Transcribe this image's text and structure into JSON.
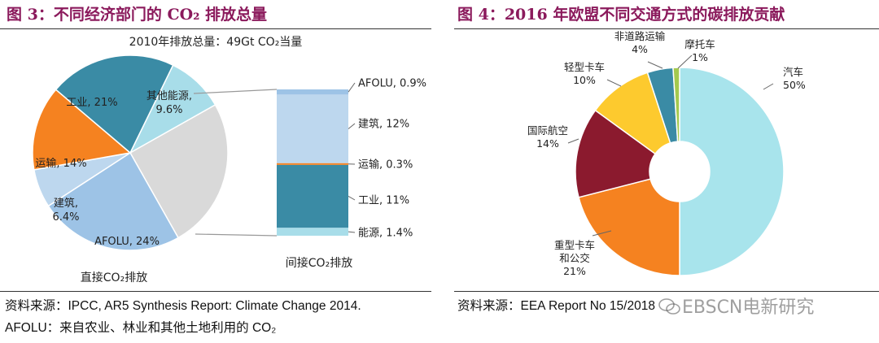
{
  "left": {
    "title": "图 3：不同经济部门的 CO₂ 排放总量",
    "subtitle": "2010年排放总量：49Gt CO₂当量",
    "source_line1": "资料来源：IPCC, AR5 Synthesis Report: Climate Change 2014.",
    "source_line2": "AFOLU：来自农业、林业和其他土地利用的 CO₂",
    "pie_caption": "直接CO₂排放",
    "bar_caption": "间接CO₂排放"
  },
  "right": {
    "title": "图 4：2016 年欧盟不同交通方式的碳排放贡献",
    "source": "资料来源：EEA Report No 15/2018"
  },
  "watermark": "EBSCN电新研究",
  "chart_data": [
    {
      "type": "pie",
      "title": "2010年排放总量：49Gt CO₂当量",
      "slices": [
        {
          "name": "其他能源",
          "value": 9.6,
          "label": "其他能源,",
          "value_label": "9.6%",
          "color": "#A8DDE9"
        },
        {
          "name": "间接CO₂排放",
          "value": 25.0,
          "label": "",
          "value_label": "",
          "color": "#D9D9D9"
        },
        {
          "name": "AFOLU",
          "value": 24,
          "label": "AFOLU, 24%",
          "value_label": "",
          "color": "#9DC3E6"
        },
        {
          "name": "建筑",
          "value": 6.4,
          "label": "建筑,",
          "value_label": "6.4%",
          "color": "#BDD7EE"
        },
        {
          "name": "运输",
          "value": 14,
          "label": "运输, 14%",
          "value_label": "",
          "color": "#F58220"
        },
        {
          "name": "工业",
          "value": 21,
          "label": "工业, 21%",
          "value_label": "",
          "color": "#3A8BA5"
        }
      ],
      "xlabel": "直接CO₂排放"
    },
    {
      "type": "bar",
      "stacked": true,
      "title": "间接CO₂排放",
      "series": [
        {
          "name": "能源",
          "value": 1.4,
          "label": "能源, 1.4%",
          "color": "#A8DDE9"
        },
        {
          "name": "工业",
          "value": 11,
          "label": "工业, 11%",
          "color": "#3A8BA5"
        },
        {
          "name": "运输",
          "value": 0.3,
          "label": "运输, 0.3%",
          "color": "#F58220"
        },
        {
          "name": "建筑",
          "value": 12,
          "label": "建筑, 12%",
          "color": "#BDD7EE"
        },
        {
          "name": "AFOLU",
          "value": 0.9,
          "label": "AFOLU, 0.9%",
          "color": "#9DC3E6"
        }
      ]
    },
    {
      "type": "pie",
      "donut": true,
      "title": "2016 年欧盟不同交通方式的碳排放贡献",
      "slices": [
        {
          "name": "汽车",
          "value": 50,
          "label": "汽车",
          "value_label": "50%",
          "color": "#A8E4EC"
        },
        {
          "name": "重型卡车和公交",
          "value": 21,
          "label": "重型卡车和公交",
          "value_label": "21%",
          "color": "#F58220"
        },
        {
          "name": "国际航空",
          "value": 14,
          "label": "国际航空",
          "value_label": "14%",
          "color": "#8B1A2E"
        },
        {
          "name": "轻型卡车",
          "value": 10,
          "label": "轻型卡车",
          "value_label": "10%",
          "color": "#FDCA2E"
        },
        {
          "name": "非道路运输",
          "value": 4,
          "label": "非道路运输",
          "value_label": "4%",
          "color": "#3A8BA5"
        },
        {
          "name": "摩托车",
          "value": 1,
          "label": "摩托车",
          "value_label": "1%",
          "color": "#A4C94E"
        }
      ]
    }
  ]
}
